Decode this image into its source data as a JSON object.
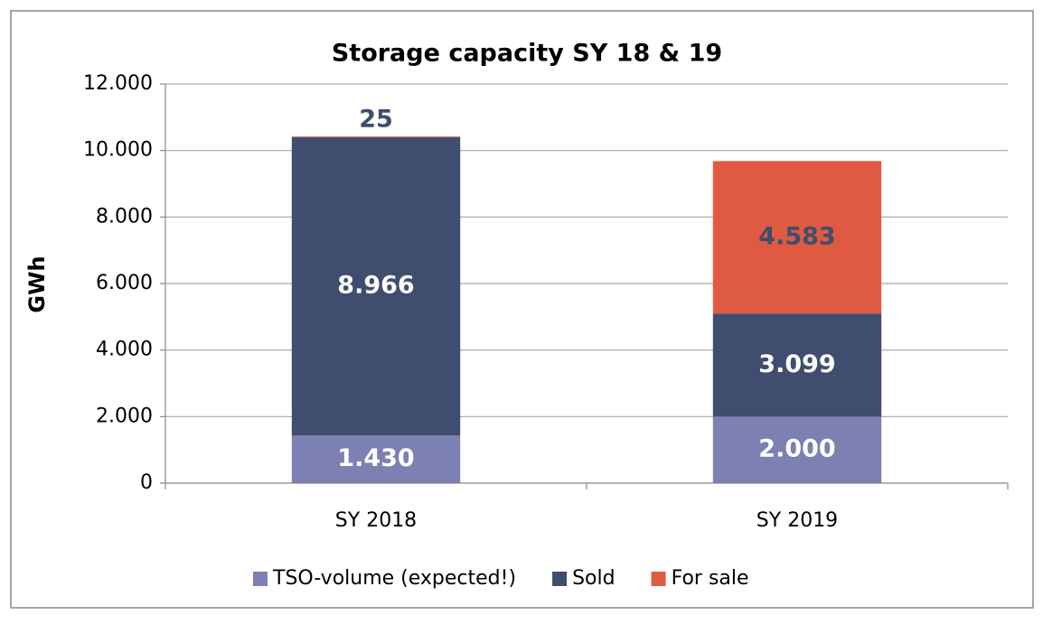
{
  "chart_data": {
    "type": "stacked_bar",
    "title": "Storage capacity SY 18 & 19",
    "y_label": "GWh",
    "categories": [
      "SY 2018",
      "SY 2019"
    ],
    "series": [
      {
        "name": "TSO-volume (expected!)",
        "color": "#7c80b3",
        "label_color": "#ffffff",
        "values": [
          1430,
          2000
        ],
        "value_labels": [
          "1.430",
          "2.000"
        ]
      },
      {
        "name": "Sold",
        "color": "#3f4d6e",
        "label_color": "#ffffff",
        "values": [
          8966,
          3099
        ],
        "value_labels": [
          "8.966",
          "3.099"
        ]
      },
      {
        "name": "For sale",
        "color": "#e05a41",
        "label_color": "#3f4d6e",
        "values": [
          25,
          4583
        ],
        "value_labels": [
          "25",
          "4.583"
        ]
      }
    ],
    "ylim": [
      0,
      12000
    ],
    "yticks": [
      0,
      {
        "value": 2000,
        "label": "2.000"
      },
      {
        "value": 4000,
        "label": "4.000"
      },
      {
        "value": 6000,
        "label": "6.000"
      },
      {
        "value": 8000,
        "label": "8.000"
      },
      {
        "value": 10000,
        "label": "10.000"
      },
      {
        "value": 12000,
        "label": "12.000"
      }
    ],
    "grid": true,
    "legend": "bottom"
  }
}
